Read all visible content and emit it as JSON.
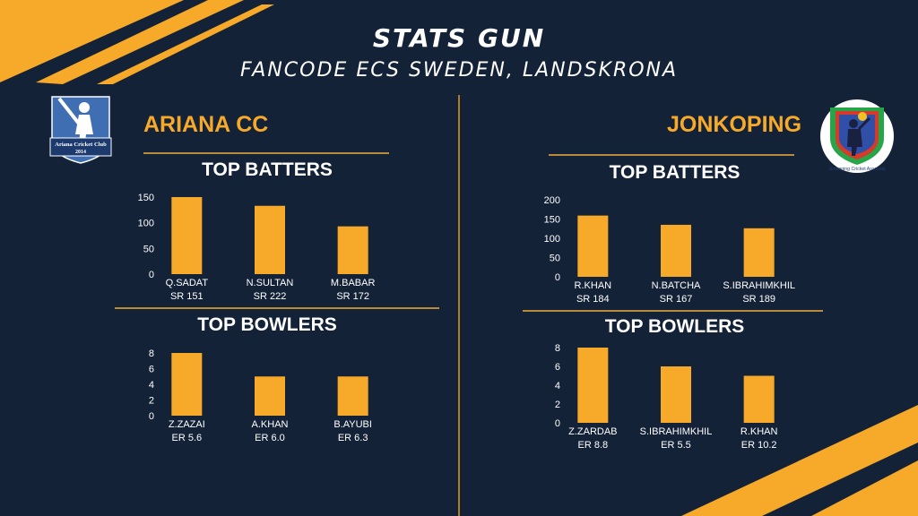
{
  "header": {
    "title": "STATS GUN",
    "subtitle": "FANCODE ECS SWEDEN, LANDSKRONA"
  },
  "teams": {
    "left": {
      "name": "ARIANA CC",
      "logo_line1": "Ariana Cricket Club",
      "logo_line2": "2014",
      "batters_title": "TOP BATTERS",
      "bowlers_title": "TOP BOWLERS"
    },
    "right": {
      "name": "JONKOPING",
      "logo_text": "Jonkoping Cricket Associati",
      "batters_title": "TOP BATTERS",
      "bowlers_title": "TOP BOWLERS"
    }
  },
  "colors": {
    "background": "#142238",
    "accent": "#f7a929",
    "bar": "#f7a929",
    "text": "#ffffff"
  },
  "chart_data": [
    {
      "id": "left-batters",
      "type": "bar",
      "title": "TOP BATTERS",
      "categories": [
        "Q.SADAT",
        "N.SULTAN",
        "M.BABAR"
      ],
      "sublabels": [
        "SR 151",
        "SR 222",
        "SR 172"
      ],
      "values": [
        151,
        133,
        93
      ],
      "ylim": [
        0,
        150
      ],
      "yticks": [
        0,
        50,
        100,
        150
      ]
    },
    {
      "id": "left-bowlers",
      "type": "bar",
      "title": "TOP BOWLERS",
      "categories": [
        "Z.ZAZAI",
        "A.KHAN",
        "B.AYUBI"
      ],
      "sublabels": [
        "ER 5.6",
        "ER 6.0",
        "ER 6.3"
      ],
      "values": [
        8,
        5,
        5
      ],
      "ylim": [
        0,
        8
      ],
      "yticks": [
        0,
        2,
        4,
        6,
        8
      ]
    },
    {
      "id": "right-batters",
      "type": "bar",
      "title": "TOP BATTERS",
      "categories": [
        "R.KHAN",
        "N.BATCHA",
        "S.IBRAHIMKHIL"
      ],
      "sublabels": [
        "SR 184",
        "SR 167",
        "SR 189"
      ],
      "values": [
        159,
        135,
        126
      ],
      "ylim": [
        0,
        200
      ],
      "yticks": [
        0,
        50,
        100,
        150,
        200
      ]
    },
    {
      "id": "right-bowlers",
      "type": "bar",
      "title": "TOP BOWLERS",
      "categories": [
        "Z.ZARDAB",
        "S.IBRAHIMKHIL",
        "R.KHAN"
      ],
      "sublabels": [
        "ER 8.8",
        "ER 5.5",
        "ER 10.2"
      ],
      "values": [
        8,
        6,
        5
      ],
      "ylim": [
        0,
        8
      ],
      "yticks": [
        0,
        2,
        4,
        6,
        8
      ]
    }
  ]
}
